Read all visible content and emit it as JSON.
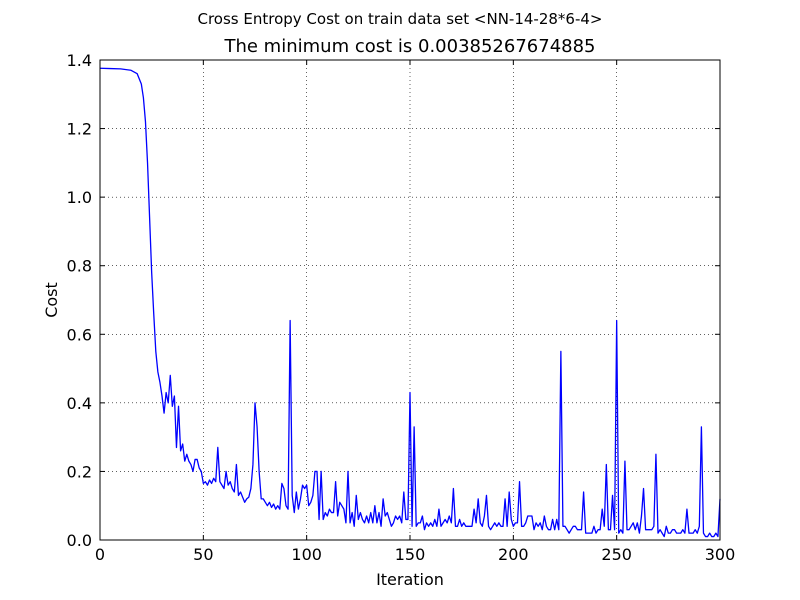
{
  "chart_data": {
    "type": "line",
    "suptitle": "Cross Entropy Cost on train data set <NN-14-28*6-4>",
    "title": "The minimum cost is 0.00385267674885",
    "xlabel": "Iteration",
    "ylabel": "Cost",
    "xlim": [
      0,
      300
    ],
    "ylim": [
      0,
      1.4
    ],
    "xticks": [
      "0",
      "50",
      "100",
      "150",
      "200",
      "250",
      "300"
    ],
    "yticks": [
      "0.0",
      "0.2",
      "0.4",
      "0.6",
      "0.8",
      "1.0",
      "1.2",
      "1.4"
    ],
    "grid": true,
    "series_color": "#0000ff",
    "series": [
      {
        "x": [
          0,
          5,
          10,
          15,
          18,
          20,
          21,
          22,
          23,
          24,
          25,
          26,
          27,
          28,
          29,
          30,
          31,
          32,
          33,
          34,
          35,
          36,
          37,
          38,
          39,
          40,
          41,
          42,
          43,
          44,
          45,
          46,
          47,
          48,
          49,
          50,
          51,
          52,
          53,
          54,
          55,
          56,
          57,
          58,
          59,
          60,
          61,
          62,
          63,
          64,
          65,
          66,
          67,
          68,
          69,
          70,
          71,
          72,
          73,
          74,
          75,
          76,
          77,
          78,
          79,
          80,
          81,
          82,
          83,
          84,
          85,
          86,
          87,
          88,
          89,
          90,
          91,
          92,
          93,
          94,
          95,
          96,
          97,
          98,
          99,
          100,
          101,
          102,
          103,
          104,
          105,
          106,
          107,
          108,
          109,
          110,
          111,
          112,
          113,
          114,
          115,
          116,
          117,
          118,
          119,
          120,
          121,
          122,
          123,
          124,
          125,
          126,
          127,
          128,
          129,
          130,
          131,
          132,
          133,
          134,
          135,
          136,
          137,
          138,
          139,
          140,
          141,
          142,
          143,
          144,
          145,
          146,
          147,
          148,
          149,
          150,
          151,
          152,
          153,
          154,
          155,
          156,
          157,
          158,
          159,
          160,
          161,
          162,
          163,
          164,
          165,
          166,
          167,
          168,
          169,
          170,
          171,
          172,
          173,
          174,
          175,
          176,
          177,
          178,
          179,
          180,
          181,
          182,
          183,
          184,
          185,
          186,
          187,
          188,
          189,
          190,
          191,
          192,
          193,
          194,
          195,
          196,
          197,
          198,
          199,
          200,
          201,
          202,
          203,
          204,
          205,
          206,
          207,
          208,
          209,
          210,
          211,
          212,
          213,
          214,
          215,
          216,
          217,
          218,
          219,
          220,
          221,
          222,
          223,
          224,
          225,
          226,
          227,
          228,
          229,
          230,
          231,
          232,
          233,
          234,
          235,
          236,
          237,
          238,
          239,
          240,
          241,
          242,
          243,
          244,
          245,
          246,
          247,
          248,
          249,
          250,
          251,
          252,
          253,
          254,
          255,
          256,
          257,
          258,
          259,
          260,
          261,
          262,
          263,
          264,
          265,
          266,
          267,
          268,
          269,
          270,
          271,
          272,
          273,
          274,
          275,
          276,
          277,
          278,
          279,
          280,
          281,
          282,
          283,
          284,
          285,
          286,
          287,
          288,
          289,
          290,
          291,
          292,
          293,
          294,
          295,
          296,
          297,
          298,
          299,
          300
        ],
        "y": [
          1.376,
          1.375,
          1.374,
          1.37,
          1.36,
          1.33,
          1.29,
          1.22,
          1.1,
          0.94,
          0.78,
          0.66,
          0.55,
          0.49,
          0.46,
          0.42,
          0.37,
          0.43,
          0.4,
          0.48,
          0.39,
          0.42,
          0.27,
          0.39,
          0.26,
          0.28,
          0.23,
          0.25,
          0.23,
          0.22,
          0.2,
          0.235,
          0.235,
          0.21,
          0.2,
          0.165,
          0.17,
          0.16,
          0.175,
          0.165,
          0.18,
          0.17,
          0.27,
          0.17,
          0.16,
          0.15,
          0.2,
          0.16,
          0.17,
          0.15,
          0.14,
          0.22,
          0.13,
          0.14,
          0.125,
          0.11,
          0.12,
          0.125,
          0.15,
          0.22,
          0.4,
          0.33,
          0.2,
          0.12,
          0.12,
          0.11,
          0.1,
          0.11,
          0.095,
          0.105,
          0.09,
          0.1,
          0.09,
          0.165,
          0.15,
          0.1,
          0.09,
          0.64,
          0.13,
          0.08,
          0.14,
          0.09,
          0.12,
          0.16,
          0.15,
          0.16,
          0.1,
          0.11,
          0.13,
          0.2,
          0.2,
          0.06,
          0.2,
          0.06,
          0.08,
          0.07,
          0.09,
          0.08,
          0.08,
          0.17,
          0.07,
          0.11,
          0.1,
          0.09,
          0.05,
          0.2,
          0.05,
          0.08,
          0.04,
          0.13,
          0.06,
          0.08,
          0.06,
          0.05,
          0.07,
          0.05,
          0.08,
          0.05,
          0.1,
          0.05,
          0.08,
          0.04,
          0.12,
          0.07,
          0.08,
          0.06,
          0.04,
          0.05,
          0.07,
          0.06,
          0.07,
          0.05,
          0.14,
          0.06,
          0.06,
          0.43,
          0.04,
          0.33,
          0.04,
          0.05,
          0.05,
          0.07,
          0.03,
          0.05,
          0.04,
          0.05,
          0.04,
          0.06,
          0.04,
          0.09,
          0.04,
          0.05,
          0.06,
          0.05,
          0.07,
          0.05,
          0.15,
          0.04,
          0.04,
          0.06,
          0.04,
          0.05,
          0.04,
          0.04,
          0.04,
          0.04,
          0.09,
          0.05,
          0.12,
          0.05,
          0.04,
          0.07,
          0.13,
          0.04,
          0.03,
          0.04,
          0.05,
          0.04,
          0.05,
          0.04,
          0.04,
          0.12,
          0.04,
          0.14,
          0.06,
          0.04,
          0.05,
          0.05,
          0.17,
          0.04,
          0.04,
          0.05,
          0.07,
          0.07,
          0.07,
          0.03,
          0.05,
          0.04,
          0.05,
          0.03,
          0.07,
          0.04,
          0.03,
          0.03,
          0.06,
          0.03,
          0.06,
          0.03,
          0.55,
          0.04,
          0.04,
          0.03,
          0.02,
          0.03,
          0.04,
          0.04,
          0.03,
          0.03,
          0.03,
          0.14,
          0.02,
          0.02,
          0.02,
          0.02,
          0.04,
          0.02,
          0.03,
          0.03,
          0.09,
          0.04,
          0.22,
          0.03,
          0.03,
          0.13,
          0.03,
          0.64,
          0.02,
          0.03,
          0.02,
          0.23,
          0.03,
          0.03,
          0.04,
          0.05,
          0.03,
          0.05,
          0.02,
          0.07,
          0.15,
          0.03,
          0.03,
          0.03,
          0.03,
          0.04,
          0.25,
          0.02,
          0.03,
          0.02,
          0.01,
          0.04,
          0.02,
          0.02,
          0.03,
          0.03,
          0.02,
          0.02,
          0.02,
          0.03,
          0.02,
          0.09,
          0.02,
          0.02,
          0.02,
          0.03,
          0.02,
          0.04,
          0.33,
          0.02,
          0.01,
          0.01,
          0.02,
          0.01,
          0.01,
          0.02,
          0.01,
          0.12
        ]
      }
    ]
  }
}
